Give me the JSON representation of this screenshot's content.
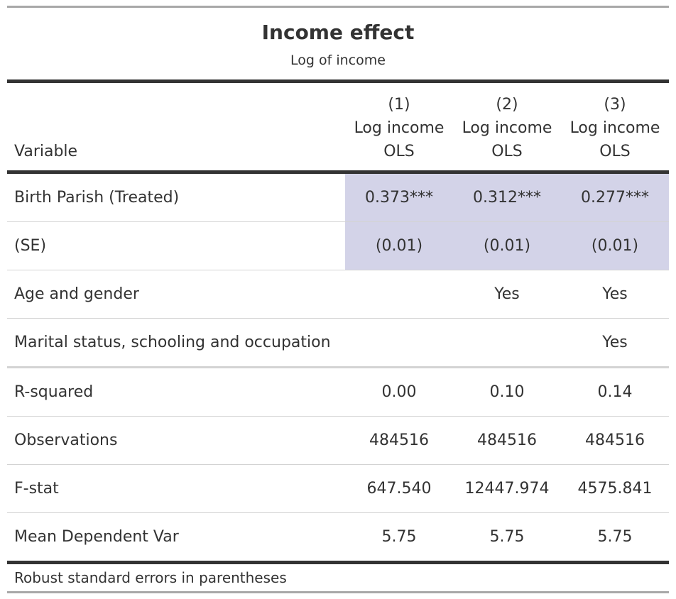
{
  "heading": {
    "title": "Income effect",
    "subtitle": "Log of income"
  },
  "columns": {
    "label_header": "Variable",
    "models": [
      {
        "number": "(1)",
        "depvar": "Log income",
        "method": "OLS"
      },
      {
        "number": "(2)",
        "depvar": "Log income",
        "method": "OLS"
      },
      {
        "number": "(3)",
        "depvar": "Log income",
        "method": "OLS"
      }
    ]
  },
  "rows": {
    "coef": {
      "label": "Birth Parish (Treated)",
      "values": [
        "0.373***",
        "0.312***",
        "0.277***"
      ]
    },
    "se": {
      "label": "(SE)",
      "values": [
        "(0.01)",
        "(0.01)",
        "(0.01)"
      ]
    },
    "controls_age": {
      "label": "Age and gender",
      "values": [
        "",
        "Yes",
        "Yes"
      ]
    },
    "controls_marital": {
      "label": "Marital status, schooling and occupation",
      "values": [
        "",
        "",
        "Yes"
      ]
    },
    "rsq": {
      "label": "R-squared",
      "values": [
        "0.00",
        "0.10",
        "0.14"
      ]
    },
    "obs": {
      "label": "Observations",
      "values": [
        "484516",
        "484516",
        "484516"
      ]
    },
    "fstat": {
      "label": "F-stat",
      "values": [
        "647.540",
        "12447.974",
        "4575.841"
      ]
    },
    "mean_dep": {
      "label": "Mean Dependent Var",
      "values": [
        "5.75",
        "5.75",
        "5.75"
      ]
    }
  },
  "footnote": "Robust standard errors in parentheses",
  "colors": {
    "highlight": "#d3d3e8",
    "rule_dark": "#333333",
    "rule_light": "#a8a8a8"
  }
}
